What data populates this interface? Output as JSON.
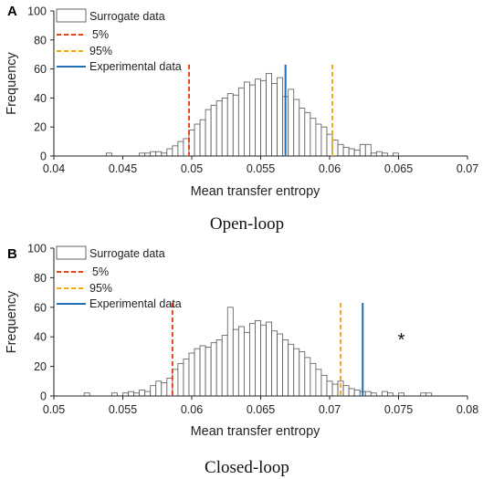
{
  "colors": {
    "bar_fill": "#ffffff",
    "bar_stroke": "#555555",
    "threshold_5": "#e2451c",
    "threshold_95": "#f2a81d",
    "experimental": "#1f6fb2",
    "axis": "#222222"
  },
  "chart_data": [
    {
      "type": "bar",
      "panel_letter": "A",
      "caption": "Open-loop",
      "xlabel": "Mean transfer entropy",
      "ylabel": "Frequency",
      "xlim": [
        0.04,
        0.07
      ],
      "ylim": [
        0,
        100
      ],
      "x_ticks": [
        "0.04",
        "0.045",
        "0.05",
        "0.055",
        "0.06",
        "0.065",
        "0.07"
      ],
      "y_ticks": [
        "0",
        "20",
        "40",
        "60",
        "80",
        "100"
      ],
      "grid": false,
      "legend_position": "top-left",
      "legend": {
        "surrogate": "Surrogate data",
        "p5": "5%",
        "p95": "95%",
        "experimental": "Experimental data"
      },
      "bin_width": 0.0004,
      "bins": [
        {
          "x": 0.0438,
          "y": 2
        },
        {
          "x": 0.0462,
          "y": 2
        },
        {
          "x": 0.0466,
          "y": 2
        },
        {
          "x": 0.047,
          "y": 3
        },
        {
          "x": 0.0474,
          "y": 3
        },
        {
          "x": 0.0478,
          "y": 2
        },
        {
          "x": 0.0482,
          "y": 5
        },
        {
          "x": 0.0486,
          "y": 7
        },
        {
          "x": 0.049,
          "y": 10
        },
        {
          "x": 0.0494,
          "y": 12
        },
        {
          "x": 0.0498,
          "y": 18
        },
        {
          "x": 0.0502,
          "y": 22
        },
        {
          "x": 0.0506,
          "y": 25
        },
        {
          "x": 0.051,
          "y": 32
        },
        {
          "x": 0.0514,
          "y": 35
        },
        {
          "x": 0.0518,
          "y": 38
        },
        {
          "x": 0.0522,
          "y": 40
        },
        {
          "x": 0.0526,
          "y": 43
        },
        {
          "x": 0.053,
          "y": 42
        },
        {
          "x": 0.0534,
          "y": 47
        },
        {
          "x": 0.0538,
          "y": 51
        },
        {
          "x": 0.0542,
          "y": 49
        },
        {
          "x": 0.0546,
          "y": 53
        },
        {
          "x": 0.055,
          "y": 52
        },
        {
          "x": 0.0554,
          "y": 57
        },
        {
          "x": 0.0558,
          "y": 50
        },
        {
          "x": 0.0562,
          "y": 54
        },
        {
          "x": 0.0566,
          "y": 41
        },
        {
          "x": 0.057,
          "y": 46
        },
        {
          "x": 0.0574,
          "y": 39
        },
        {
          "x": 0.0578,
          "y": 33
        },
        {
          "x": 0.0582,
          "y": 30
        },
        {
          "x": 0.0586,
          "y": 26
        },
        {
          "x": 0.059,
          "y": 22
        },
        {
          "x": 0.0594,
          "y": 20
        },
        {
          "x": 0.0598,
          "y": 15
        },
        {
          "x": 0.0602,
          "y": 11
        },
        {
          "x": 0.0606,
          "y": 8
        },
        {
          "x": 0.061,
          "y": 6
        },
        {
          "x": 0.0614,
          "y": 5
        },
        {
          "x": 0.0618,
          "y": 4
        },
        {
          "x": 0.0622,
          "y": 8
        },
        {
          "x": 0.0626,
          "y": 8
        },
        {
          "x": 0.063,
          "y": 2
        },
        {
          "x": 0.0634,
          "y": 3
        },
        {
          "x": 0.0638,
          "y": 2
        },
        {
          "x": 0.0646,
          "y": 2
        }
      ],
      "p5": 0.0498,
      "p95": 0.0602,
      "experimental": 0.0568,
      "significance_mark": ""
    },
    {
      "type": "bar",
      "panel_letter": "B",
      "caption": "Closed-loop",
      "xlabel": "Mean transfer entropy",
      "ylabel": "Frequency",
      "xlim": [
        0.05,
        0.08
      ],
      "ylim": [
        0,
        100
      ],
      "x_ticks": [
        "0.05",
        "0.055",
        "0.06",
        "0.065",
        "0.07",
        "0.075",
        "0.08"
      ],
      "y_ticks": [
        "0",
        "20",
        "40",
        "60",
        "80",
        "100"
      ],
      "grid": false,
      "legend_position": "top-left",
      "legend": {
        "surrogate": "Surrogate data",
        "p5": "5%",
        "p95": "95%",
        "experimental": "Experimental data"
      },
      "bin_width": 0.0004,
      "bins": [
        {
          "x": 0.0522,
          "y": 2
        },
        {
          "x": 0.0542,
          "y": 2
        },
        {
          "x": 0.055,
          "y": 2
        },
        {
          "x": 0.0554,
          "y": 3
        },
        {
          "x": 0.0558,
          "y": 2
        },
        {
          "x": 0.0562,
          "y": 4
        },
        {
          "x": 0.0566,
          "y": 3
        },
        {
          "x": 0.057,
          "y": 7
        },
        {
          "x": 0.0574,
          "y": 10
        },
        {
          "x": 0.0578,
          "y": 9
        },
        {
          "x": 0.0582,
          "y": 12
        },
        {
          "x": 0.0586,
          "y": 18
        },
        {
          "x": 0.059,
          "y": 22
        },
        {
          "x": 0.0594,
          "y": 25
        },
        {
          "x": 0.0598,
          "y": 29
        },
        {
          "x": 0.0602,
          "y": 32
        },
        {
          "x": 0.0606,
          "y": 34
        },
        {
          "x": 0.061,
          "y": 33
        },
        {
          "x": 0.0614,
          "y": 36
        },
        {
          "x": 0.0618,
          "y": 38
        },
        {
          "x": 0.0622,
          "y": 41
        },
        {
          "x": 0.0626,
          "y": 60
        },
        {
          "x": 0.063,
          "y": 45
        },
        {
          "x": 0.0634,
          "y": 47
        },
        {
          "x": 0.0638,
          "y": 43
        },
        {
          "x": 0.0642,
          "y": 49
        },
        {
          "x": 0.0646,
          "y": 51
        },
        {
          "x": 0.065,
          "y": 48
        },
        {
          "x": 0.0654,
          "y": 50
        },
        {
          "x": 0.0658,
          "y": 44
        },
        {
          "x": 0.0662,
          "y": 42
        },
        {
          "x": 0.0666,
          "y": 38
        },
        {
          "x": 0.067,
          "y": 35
        },
        {
          "x": 0.0674,
          "y": 32
        },
        {
          "x": 0.0678,
          "y": 30
        },
        {
          "x": 0.0682,
          "y": 26
        },
        {
          "x": 0.0686,
          "y": 22
        },
        {
          "x": 0.069,
          "y": 18
        },
        {
          "x": 0.0694,
          "y": 14
        },
        {
          "x": 0.0698,
          "y": 10
        },
        {
          "x": 0.0702,
          "y": 8
        },
        {
          "x": 0.0706,
          "y": 10
        },
        {
          "x": 0.071,
          "y": 7
        },
        {
          "x": 0.0714,
          "y": 5
        },
        {
          "x": 0.0718,
          "y": 4
        },
        {
          "x": 0.0722,
          "y": 3
        },
        {
          "x": 0.0726,
          "y": 3
        },
        {
          "x": 0.073,
          "y": 2
        },
        {
          "x": 0.0738,
          "y": 3
        },
        {
          "x": 0.0742,
          "y": 2
        },
        {
          "x": 0.075,
          "y": 2
        },
        {
          "x": 0.0766,
          "y": 2
        },
        {
          "x": 0.077,
          "y": 2
        }
      ],
      "p5": 0.0586,
      "p95": 0.0708,
      "experimental": 0.0724,
      "significance_mark": "*",
      "significance_x": 0.0752,
      "significance_y": 40
    }
  ]
}
